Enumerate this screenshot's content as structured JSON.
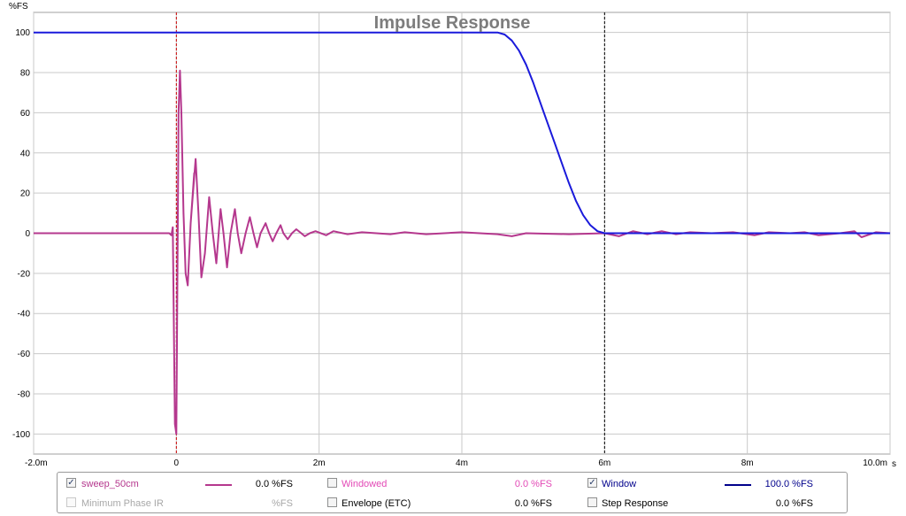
{
  "chart_data": {
    "type": "line",
    "title": "Impulse Response",
    "ylabel": "%FS",
    "xlabel": "",
    "x_unit": "s",
    "xlim": [
      -0.002,
      0.01
    ],
    "ylim": [
      -100,
      100
    ],
    "y_ticks": [
      100,
      80,
      60,
      40,
      20,
      0,
      -20,
      -40,
      -60,
      -80,
      -100
    ],
    "x_ticks": [
      {
        "value": -0.002,
        "label": "-2.0m"
      },
      {
        "value": 0.0,
        "label": "0"
      },
      {
        "value": 0.002,
        "label": "2m"
      },
      {
        "value": 0.004,
        "label": "4m"
      },
      {
        "value": 0.006,
        "label": "6m"
      },
      {
        "value": 0.008,
        "label": "8m"
      },
      {
        "value": 0.01,
        "label": "10.0m"
      }
    ],
    "grid": true,
    "markers": [
      {
        "x": 0.0,
        "color": "#cc0000",
        "style": "dashed"
      },
      {
        "x": 0.006,
        "color": "#000000",
        "style": "dashed"
      }
    ],
    "series": [
      {
        "name": "sweep_50cm",
        "color": "#b5388e",
        "points": [
          [
            -0.002,
            0
          ],
          [
            -0.0001,
            0
          ],
          [
            -7e-05,
            -1
          ],
          [
            -5e-05,
            3
          ],
          [
            -2e-05,
            -95
          ],
          [
            0.0,
            -100
          ],
          [
            3e-05,
            60
          ],
          [
            5e-05,
            81
          ],
          [
            7e-05,
            60
          ],
          [
            0.0001,
            10
          ],
          [
            0.00013,
            -20
          ],
          [
            0.00016,
            -26
          ],
          [
            0.0002,
            5
          ],
          [
            0.00025,
            30
          ],
          [
            0.0002,
            5
          ],
          [
            0.00027,
            37
          ],
          [
            0.00031,
            10
          ],
          [
            0.00035,
            -22
          ],
          [
            0.0004,
            -10
          ],
          [
            0.00046,
            18
          ],
          [
            0.00051,
            0
          ],
          [
            0.00056,
            -15
          ],
          [
            0.00062,
            12
          ],
          [
            0.00066,
            0
          ],
          [
            0.00071,
            -17
          ],
          [
            0.00076,
            0
          ],
          [
            0.00082,
            12
          ],
          [
            0.00086,
            0
          ],
          [
            0.00091,
            -10
          ],
          [
            0.00097,
            0
          ],
          [
            0.00103,
            8
          ],
          [
            0.00108,
            0
          ],
          [
            0.00113,
            -7
          ],
          [
            0.00118,
            0
          ],
          [
            0.00125,
            5
          ],
          [
            0.0013,
            0
          ],
          [
            0.00135,
            -4
          ],
          [
            0.0014,
            0
          ],
          [
            0.00146,
            4
          ],
          [
            0.0015,
            0
          ],
          [
            0.00156,
            -3
          ],
          [
            0.00162,
            0
          ],
          [
            0.00168,
            2
          ],
          [
            0.00175,
            0
          ],
          [
            0.0018,
            -1.5
          ],
          [
            0.00187,
            0
          ],
          [
            0.00195,
            1
          ],
          [
            0.0021,
            -1
          ],
          [
            0.0022,
            1
          ],
          [
            0.0024,
            -0.5
          ],
          [
            0.0026,
            0.5
          ],
          [
            0.003,
            -0.5
          ],
          [
            0.0032,
            0.5
          ],
          [
            0.0035,
            -0.5
          ],
          [
            0.004,
            0.5
          ],
          [
            0.0045,
            -0.5
          ],
          [
            0.0047,
            -1.5
          ],
          [
            0.0049,
            0
          ],
          [
            0.0055,
            -0.5
          ],
          [
            0.006,
            0
          ],
          [
            0.0062,
            -1.5
          ],
          [
            0.0064,
            1
          ],
          [
            0.0066,
            -0.5
          ],
          [
            0.0068,
            1
          ],
          [
            0.007,
            -0.5
          ],
          [
            0.0072,
            0.5
          ],
          [
            0.0075,
            0
          ],
          [
            0.0078,
            0.5
          ],
          [
            0.0081,
            -1
          ],
          [
            0.0083,
            0.5
          ],
          [
            0.0086,
            0
          ],
          [
            0.0088,
            0.5
          ],
          [
            0.009,
            -1
          ],
          [
            0.0093,
            0
          ],
          [
            0.0095,
            1
          ],
          [
            0.0096,
            -2
          ],
          [
            0.0098,
            0.5
          ],
          [
            0.01,
            0
          ]
        ]
      },
      {
        "name": "Window",
        "color": "#1a1adb",
        "points": [
          [
            -0.002,
            100
          ],
          [
            0.0045,
            100
          ],
          [
            0.0046,
            99
          ],
          [
            0.0047,
            96
          ],
          [
            0.0048,
            91
          ],
          [
            0.0049,
            84
          ],
          [
            0.005,
            75
          ],
          [
            0.0051,
            65
          ],
          [
            0.0052,
            55
          ],
          [
            0.0053,
            45
          ],
          [
            0.0054,
            35
          ],
          [
            0.0055,
            25
          ],
          [
            0.0056,
            16
          ],
          [
            0.0057,
            9
          ],
          [
            0.0058,
            4
          ],
          [
            0.0059,
            1
          ],
          [
            0.006,
            0
          ],
          [
            0.01,
            0
          ]
        ]
      }
    ]
  },
  "legend": {
    "rows": [
      [
        {
          "label": "sweep_50cm",
          "checked": true,
          "enabled": true,
          "color": "#b5388e",
          "label_color": "#b5388e",
          "value": "0.0 %FS",
          "has_swatch": true
        },
        {
          "label": "Windowed",
          "checked": false,
          "enabled": true,
          "color": "#e349b6",
          "label_color": "#e349b6",
          "value": "0.0 %FS",
          "has_swatch": false
        },
        {
          "label": "Window",
          "checked": true,
          "enabled": true,
          "color": "#00008b",
          "label_color": "#00008b",
          "value": "100.0 %FS",
          "has_swatch": true
        }
      ],
      [
        {
          "label": "Minimum Phase IR",
          "checked": false,
          "enabled": false,
          "color": "#a8a8a8",
          "label_color": "#a8a8a8",
          "value": "%FS",
          "has_swatch": false
        },
        {
          "label": "Envelope (ETC)",
          "checked": false,
          "enabled": true,
          "color": "#000000",
          "label_color": "#000000",
          "value": "0.0 %FS",
          "has_swatch": false
        },
        {
          "label": "Step Response",
          "checked": false,
          "enabled": true,
          "color": "#000000",
          "label_color": "#000000",
          "value": "0.0 %FS",
          "has_swatch": false
        }
      ]
    ]
  }
}
